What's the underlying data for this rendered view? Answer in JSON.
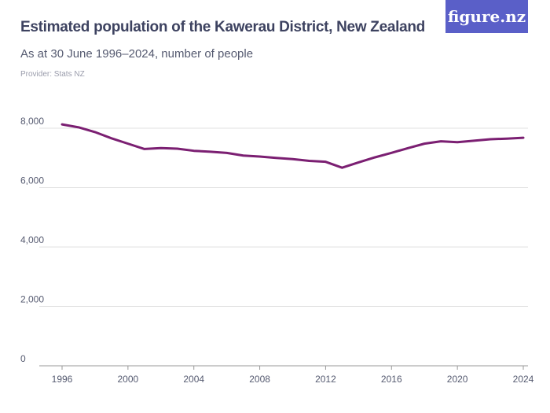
{
  "header": {
    "title": "Estimated population of the Kawerau District, New Zealand",
    "subtitle": "As at 30 June 1996–2024, number of people",
    "provider": "Provider: Stats NZ",
    "logo_text": "figure.nz"
  },
  "colors": {
    "line": "#7b1f72",
    "logo_bg": "#5a5fc8",
    "grid": "#e2e2e2"
  },
  "chart_data": {
    "type": "line",
    "title": "Estimated population of the Kawerau District, New Zealand",
    "subtitle": "As at 30 June 1996–2024, number of people",
    "xlabel": "",
    "ylabel": "",
    "ylim": [
      0,
      8000
    ],
    "xlim": [
      1996,
      2024
    ],
    "grid": true,
    "y_ticks": [
      {
        "v": 0,
        "label": "0"
      },
      {
        "v": 2000,
        "label": "2,000"
      },
      {
        "v": 4000,
        "label": "4,000"
      },
      {
        "v": 6000,
        "label": "6,000"
      },
      {
        "v": 8000,
        "label": "8,000"
      }
    ],
    "x_ticks": [
      {
        "v": 1996,
        "label": "1996"
      },
      {
        "v": 2000,
        "label": "2000"
      },
      {
        "v": 2004,
        "label": "2004"
      },
      {
        "v": 2008,
        "label": "2008"
      },
      {
        "v": 2012,
        "label": "2012"
      },
      {
        "v": 2016,
        "label": "2016"
      },
      {
        "v": 2020,
        "label": "2020"
      },
      {
        "v": 2024,
        "label": "2024"
      }
    ],
    "x": [
      1996,
      1997,
      1998,
      1999,
      2000,
      2001,
      2002,
      2003,
      2004,
      2005,
      2006,
      2007,
      2008,
      2009,
      2010,
      2011,
      2012,
      2013,
      2014,
      2015,
      2016,
      2017,
      2018,
      2019,
      2020,
      2021,
      2022,
      2023,
      2024
    ],
    "values": [
      8130,
      8030,
      7870,
      7660,
      7480,
      7300,
      7330,
      7310,
      7240,
      7210,
      7170,
      7080,
      7045,
      7000,
      6960,
      6900,
      6870,
      6670,
      6850,
      7020,
      7170,
      7330,
      7480,
      7560,
      7530,
      7580,
      7630,
      7650,
      7680
    ]
  }
}
